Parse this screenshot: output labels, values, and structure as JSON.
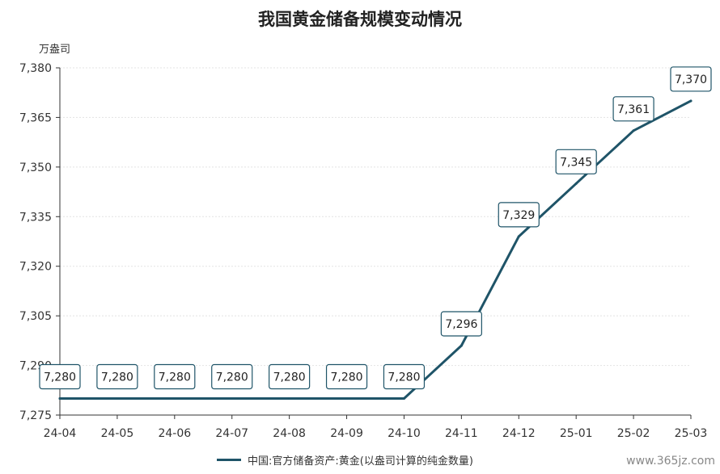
{
  "title": "我国黄金储备规模变动情况",
  "watermark": "www.365jz.com",
  "chart_data": {
    "type": "line",
    "title": "我国黄金储备规模变动情况",
    "ylabel": "万盎司",
    "categories": [
      "24-04",
      "24-05",
      "24-06",
      "24-07",
      "24-08",
      "24-09",
      "24-10",
      "24-11",
      "24-12",
      "25-01",
      "25-02",
      "25-03"
    ],
    "ylim": [
      7275,
      7380
    ],
    "yticks": [
      7275,
      7290,
      7305,
      7320,
      7335,
      7350,
      7365,
      7380
    ],
    "ytick_labels": [
      "7,275",
      "7,290",
      "7,305",
      "7,320",
      "7,335",
      "7,350",
      "7,365",
      "7,380"
    ],
    "series": [
      {
        "name": "中国:官方储备资产:黄金(以盎司计算的纯金数量)",
        "color": "#1f5468",
        "values": [
          7280,
          7280,
          7280,
          7280,
          7280,
          7280,
          7280,
          7296,
          7329,
          7345,
          7361,
          7370
        ],
        "labels": [
          "7,280",
          "7,280",
          "7,280",
          "7,280",
          "7,280",
          "7,280",
          "7,280",
          "7,296",
          "7,329",
          "7,345",
          "7,361",
          "7,370"
        ]
      }
    ],
    "grid": true,
    "legend": "bottom"
  }
}
